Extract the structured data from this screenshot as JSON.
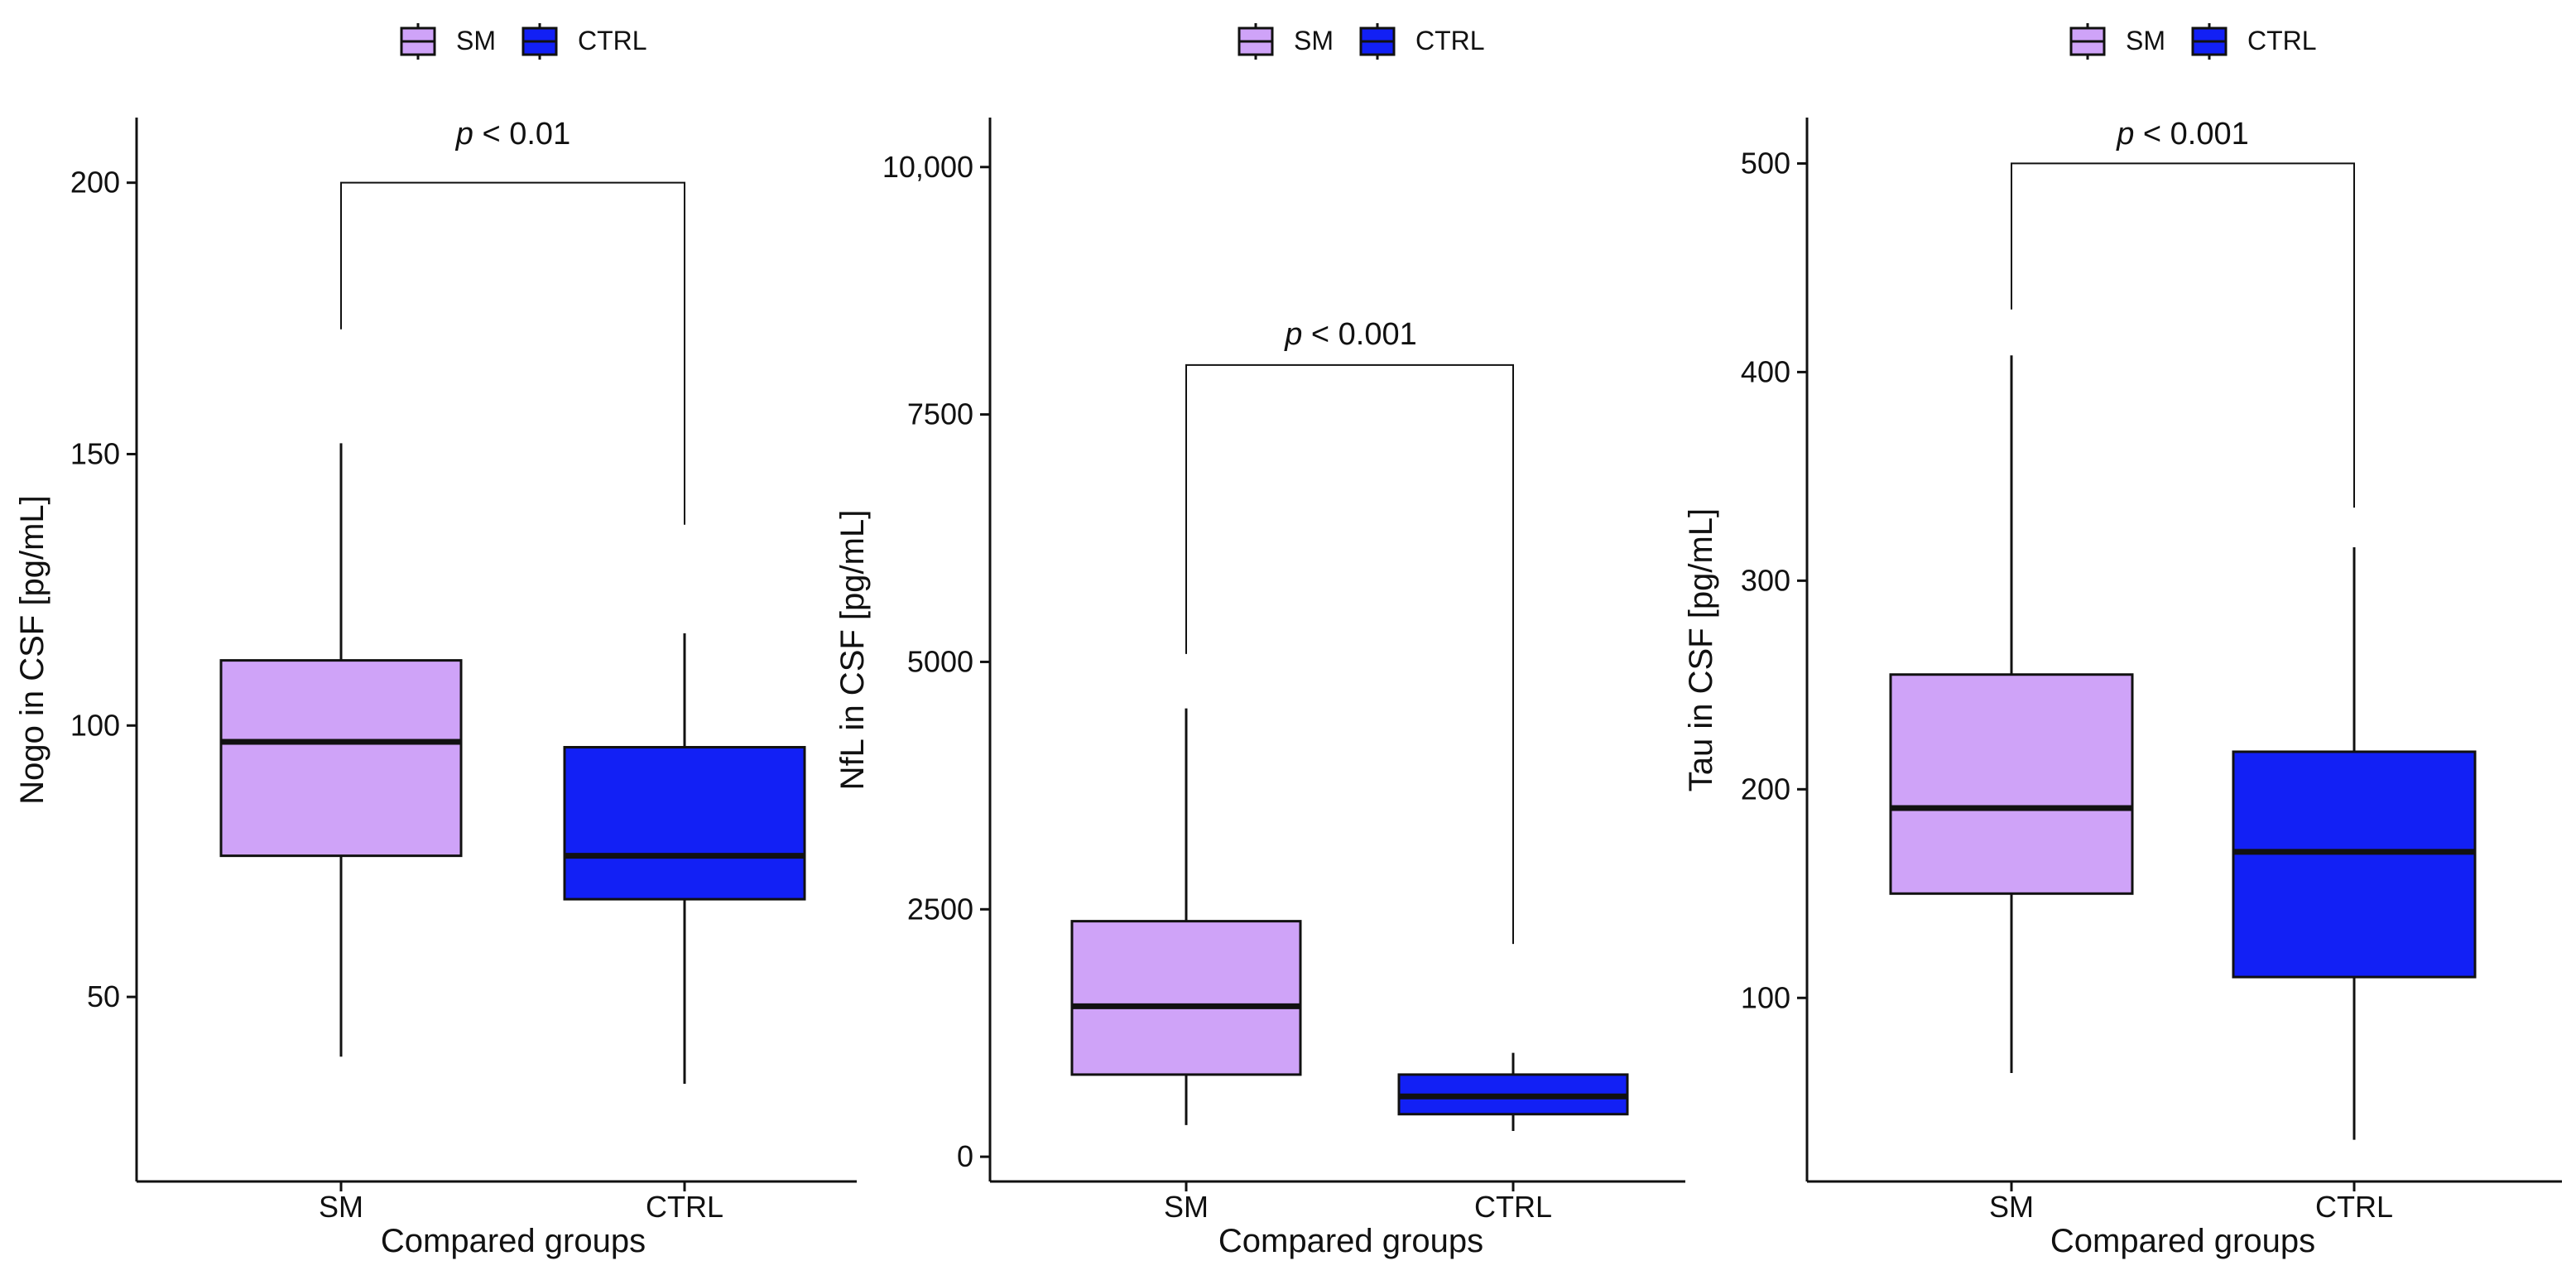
{
  "colors": {
    "SM": "#cfa3f8",
    "CTRL": "#1220f5",
    "line": "#111111"
  },
  "chart_data": [
    {
      "type": "boxplot",
      "legend": [
        {
          "label": "SM",
          "color": "#cfa3f8"
        },
        {
          "label": "CTRL",
          "color": "#1220f5"
        }
      ],
      "legend_position": "top",
      "categories": [
        "SM",
        "CTRL"
      ],
      "xlabel": "Compared groups",
      "ylabel": "Nogo in CSF [pg/mL]",
      "ylim": [
        16,
        212
      ],
      "yticks": [
        50,
        100,
        150,
        200
      ],
      "ytick_labels": [
        "50",
        "100",
        "150",
        "200"
      ],
      "boxes": [
        {
          "group": "SM",
          "whisker_low": 39,
          "q1": 76,
          "median": 97,
          "q3": 112,
          "whisker_high": 152
        },
        {
          "group": "CTRL",
          "whisker_low": 34,
          "q1": 68,
          "median": 76,
          "q3": 96,
          "whisker_high": 117
        }
      ],
      "comparison": {
        "prefix": "p",
        "text": " < 0.01",
        "y_bracket": 200,
        "left_end": 173,
        "right_end": 137
      }
    },
    {
      "type": "boxplot",
      "legend": [
        {
          "label": "SM",
          "color": "#cfa3f8"
        },
        {
          "label": "CTRL",
          "color": "#1220f5"
        }
      ],
      "legend_position": "top",
      "categories": [
        "SM",
        "CTRL"
      ],
      "xlabel": "Compared groups",
      "ylabel": "NfL in CSF [pg/mL]",
      "ylim": [
        -250,
        10500
      ],
      "yticks": [
        0,
        2500,
        5000,
        7500,
        10000
      ],
      "ytick_labels": [
        "0",
        "2500",
        "5000",
        "7500",
        "10,000"
      ],
      "boxes": [
        {
          "group": "SM",
          "whisker_low": 320,
          "q1": 830,
          "median": 1520,
          "q3": 2380,
          "whisker_high": 4530
        },
        {
          "group": "CTRL",
          "whisker_low": 260,
          "q1": 430,
          "median": 610,
          "q3": 830,
          "whisker_high": 1050
        }
      ],
      "comparison": {
        "prefix": "p",
        "text": " < 0.001",
        "y_bracket": 8000,
        "left_end": 5080,
        "right_end": 2150
      }
    },
    {
      "type": "boxplot",
      "legend": [
        {
          "label": "SM",
          "color": "#cfa3f8"
        },
        {
          "label": "CTRL",
          "color": "#1220f5"
        }
      ],
      "legend_position": "top",
      "categories": [
        "SM",
        "CTRL"
      ],
      "xlabel": "Compared groups",
      "ylabel": "Tau in CSF [pg/mL]",
      "ylim": [
        12,
        522
      ],
      "yticks": [
        100,
        200,
        300,
        400,
        500
      ],
      "ytick_labels": [
        "100",
        "200",
        "300",
        "400",
        "500"
      ],
      "boxes": [
        {
          "group": "SM",
          "whisker_low": 64,
          "q1": 150,
          "median": 191,
          "q3": 255,
          "whisker_high": 408
        },
        {
          "group": "CTRL",
          "whisker_low": 32,
          "q1": 110,
          "median": 170,
          "q3": 218,
          "whisker_high": 316
        }
      ],
      "comparison": {
        "prefix": "p",
        "text": " < 0.001",
        "y_bracket": 500,
        "left_end": 430,
        "right_end": 335
      }
    }
  ]
}
